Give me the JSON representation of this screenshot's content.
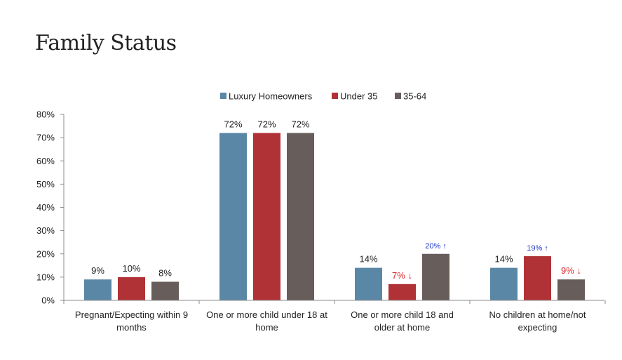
{
  "page": {
    "title": "Family Status"
  },
  "chart_data": {
    "type": "bar",
    "title": "",
    "xlabel": "",
    "ylabel": "",
    "ylim": [
      0,
      80
    ],
    "yticks": [
      0,
      10,
      20,
      30,
      40,
      50,
      60,
      70,
      80
    ],
    "ytick_labels": [
      "0%",
      "10%",
      "20%",
      "30%",
      "40%",
      "50%",
      "60%",
      "70%",
      "80%"
    ],
    "legend_position": "top-center",
    "grid": false,
    "categories": [
      [
        "Pregnant/Expecting within 9",
        "months"
      ],
      [
        "One or more child under 18 at",
        "home"
      ],
      [
        "One or more child 18 and",
        "older at home"
      ],
      [
        "No children at home/not",
        "expecting"
      ]
    ],
    "series": [
      {
        "name": "Luxury Homeowners",
        "color": "#5b87a6",
        "values": [
          9,
          72,
          14,
          14
        ]
      },
      {
        "name": "Under 35",
        "color": "#b03236",
        "values": [
          10,
          72,
          7,
          19
        ]
      },
      {
        "name": "35-64",
        "color": "#675d5a",
        "values": [
          8,
          72,
          20,
          9
        ]
      }
    ],
    "data_labels": [
      [
        {
          "text": "9%",
          "color": "#222222"
        },
        {
          "text": "72%",
          "color": "#222222"
        },
        {
          "text": "14%",
          "color": "#222222"
        },
        {
          "text": "14%",
          "color": "#222222"
        }
      ],
      [
        {
          "text": "10%",
          "color": "#222222"
        },
        {
          "text": "72%",
          "color": "#222222"
        },
        {
          "text": "7% ↓",
          "color": "#e0262b"
        },
        {
          "text": "19% ↑",
          "color": "#1f36c7"
        }
      ],
      [
        {
          "text": "8%",
          "color": "#222222"
        },
        {
          "text": "72%",
          "color": "#222222"
        },
        {
          "text": "20% ↑",
          "color": "#1f36c7"
        },
        {
          "text": "9% ↓",
          "color": "#e0262b"
        }
      ]
    ]
  }
}
